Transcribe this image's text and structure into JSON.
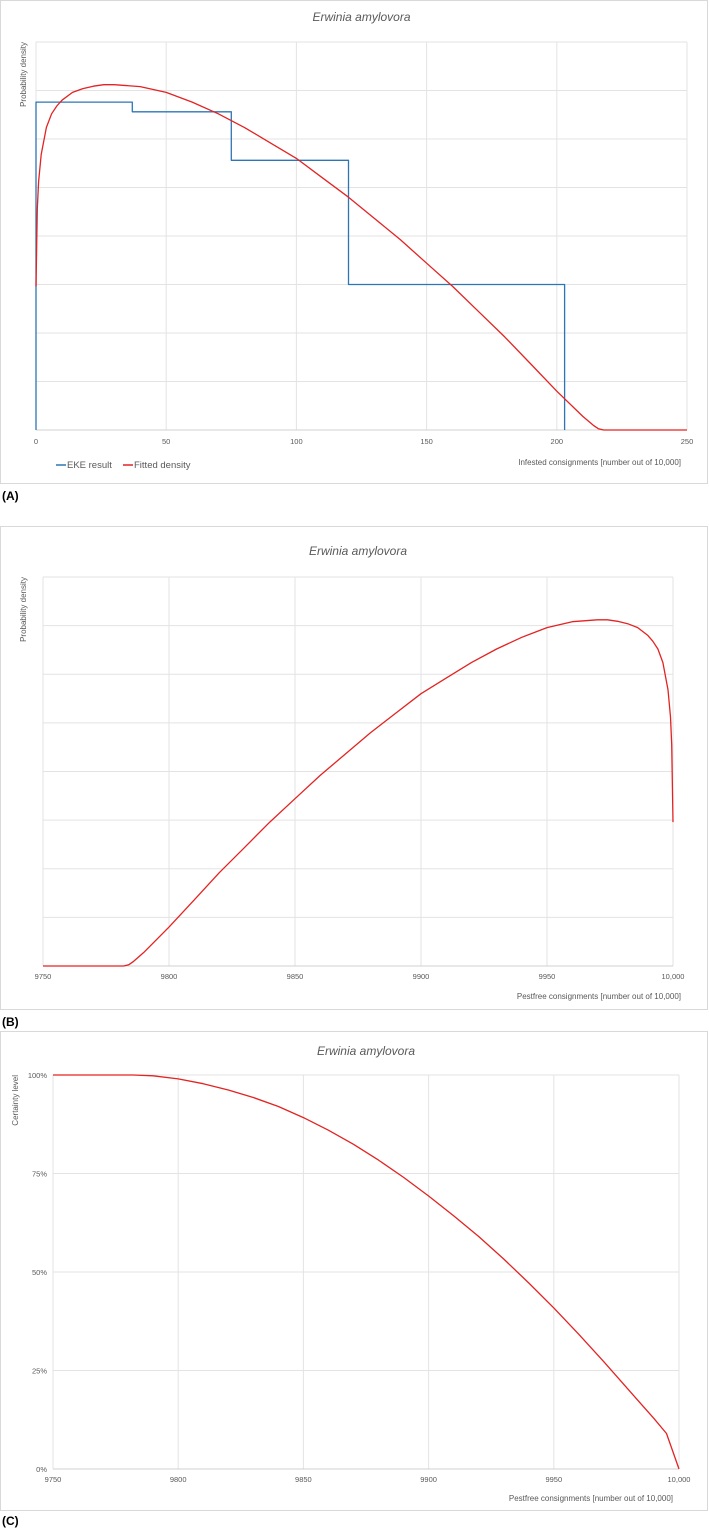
{
  "figure_labels": [
    "(A)",
    "(B)",
    "(C)"
  ],
  "chart_data": [
    {
      "id": "A",
      "type": "line",
      "title": "Erwinia amylovora",
      "xlabel": "Infested consignments [number out of 10,000]",
      "ylabel": "Probability density",
      "xlim": [
        0,
        250
      ],
      "ylim": [
        0,
        1
      ],
      "xticks": [
        0,
        50,
        100,
        150,
        200,
        250
      ],
      "xtick_labels": [
        "0",
        "50",
        "100",
        "150",
        "200",
        "250"
      ],
      "y_gridlines": 8,
      "y_tick_labels_shown": false,
      "legend": {
        "position": "bottom-left",
        "entries": [
          "EKE result",
          "Fitted density"
        ]
      },
      "series": [
        {
          "name": "EKE result",
          "style": "step",
          "color": "#2e75b6",
          "x": [
            0,
            0,
            37,
            37,
            75,
            75,
            120,
            120,
            203,
            203
          ],
          "y": [
            0,
            0.845,
            0.845,
            0.82,
            0.82,
            0.695,
            0.695,
            0.375,
            0.375,
            0
          ]
        },
        {
          "name": "Fitted density",
          "style": "line",
          "color": "#e32322",
          "x": [
            0,
            0.5,
            1,
            2,
            4,
            6,
            8,
            10,
            14,
            18,
            22,
            26,
            30,
            40,
            50,
            60,
            70,
            80,
            90,
            100,
            110,
            120,
            130,
            140,
            150,
            160,
            170,
            180,
            190,
            200,
            210,
            214,
            216,
            218,
            250
          ],
          "y": [
            0.37,
            0.57,
            0.64,
            0.71,
            0.78,
            0.815,
            0.835,
            0.85,
            0.87,
            0.88,
            0.886,
            0.89,
            0.89,
            0.885,
            0.87,
            0.845,
            0.815,
            0.78,
            0.74,
            0.7,
            0.65,
            0.6,
            0.545,
            0.49,
            0.43,
            0.37,
            0.305,
            0.24,
            0.17,
            0.1,
            0.035,
            0.012,
            0.003,
            0,
            0
          ]
        }
      ]
    },
    {
      "id": "B",
      "type": "line",
      "title": "Erwinia amylovora",
      "xlabel": "Pestfree consignments [number out of 10,000]",
      "ylabel": "Probability density",
      "xlim": [
        9750,
        10000
      ],
      "ylim": [
        0,
        1
      ],
      "xticks": [
        9750,
        9800,
        9850,
        9900,
        9950,
        10000
      ],
      "xtick_labels": [
        "9750",
        "9800",
        "9850",
        "9900",
        "9950",
        "10,000"
      ],
      "y_gridlines": 8,
      "y_tick_labels_shown": false,
      "series": [
        {
          "name": "",
          "style": "line",
          "color": "#e32322",
          "x": [
            9750,
            9782,
            9784,
            9786,
            9790,
            9800,
            9810,
            9820,
            9830,
            9840,
            9850,
            9860,
            9870,
            9880,
            9890,
            9900,
            9910,
            9920,
            9930,
            9940,
            9950,
            9960,
            9970,
            9974,
            9978,
            9982,
            9986,
            9990,
            9992,
            9994,
            9996,
            9998,
            9999,
            9999.5,
            10000
          ],
          "y": [
            0,
            0,
            0.003,
            0.012,
            0.035,
            0.1,
            0.17,
            0.24,
            0.305,
            0.37,
            0.43,
            0.49,
            0.545,
            0.6,
            0.65,
            0.7,
            0.74,
            0.78,
            0.815,
            0.845,
            0.87,
            0.885,
            0.89,
            0.89,
            0.886,
            0.88,
            0.87,
            0.85,
            0.835,
            0.815,
            0.78,
            0.71,
            0.64,
            0.57,
            0.37
          ]
        }
      ]
    },
    {
      "id": "C",
      "type": "line",
      "title": "Erwinia amylovora",
      "xlabel": "Pestfree consignments [number out of 10,000]",
      "ylabel": "Certainty level",
      "xlim": [
        9750,
        10000
      ],
      "ylim": [
        0,
        1
      ],
      "xticks": [
        9750,
        9800,
        9850,
        9900,
        9950,
        10000
      ],
      "xtick_labels": [
        "9750",
        "9800",
        "9850",
        "9900",
        "9950",
        "10,000"
      ],
      "yticks": [
        0,
        0.25,
        0.5,
        0.75,
        1
      ],
      "ytick_labels": [
        "0%",
        "25%",
        "50%",
        "75%",
        "100%"
      ],
      "series": [
        {
          "name": "",
          "style": "line",
          "color": "#e32322",
          "x": [
            9750,
            9775,
            9782,
            9790,
            9800,
            9810,
            9820,
            9830,
            9840,
            9850,
            9860,
            9870,
            9880,
            9890,
            9900,
            9910,
            9920,
            9930,
            9940,
            9950,
            9960,
            9970,
            9980,
            9990,
            9995,
            10000
          ],
          "y": [
            1,
            1,
            1,
            0.998,
            0.99,
            0.978,
            0.962,
            0.943,
            0.92,
            0.892,
            0.86,
            0.824,
            0.784,
            0.74,
            0.693,
            0.643,
            0.59,
            0.533,
            0.472,
            0.409,
            0.342,
            0.272,
            0.2,
            0.128,
            0.09,
            0
          ]
        }
      ]
    }
  ]
}
